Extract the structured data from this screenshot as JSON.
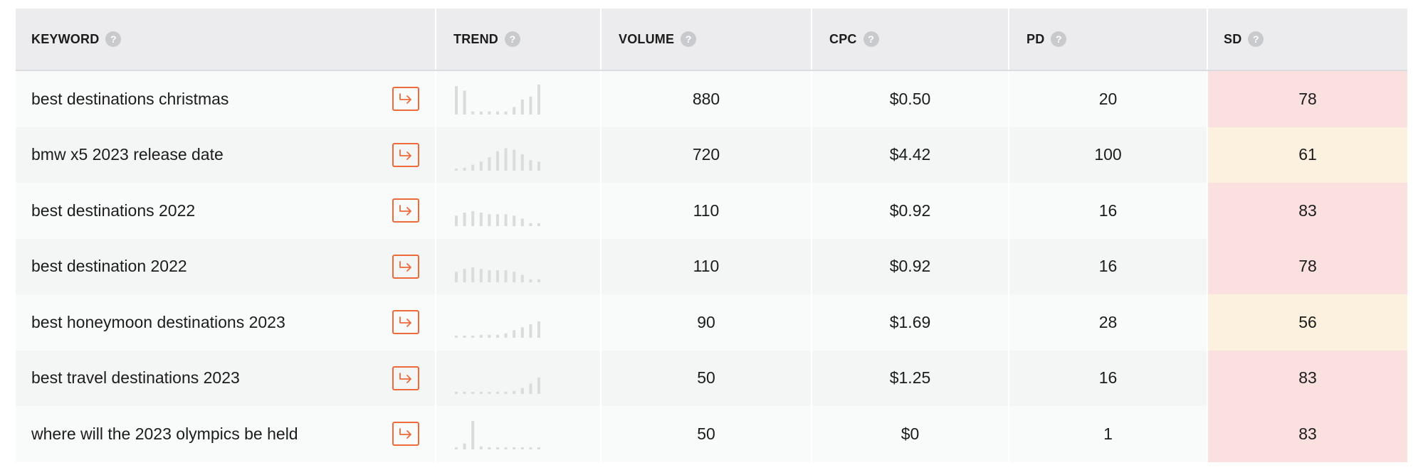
{
  "table": {
    "headers": [
      {
        "key": "keyword",
        "label": "KEYWORD"
      },
      {
        "key": "trend",
        "label": "TREND"
      },
      {
        "key": "volume",
        "label": "VOLUME"
      },
      {
        "key": "cpc",
        "label": "CPC"
      },
      {
        "key": "pd",
        "label": "PD"
      },
      {
        "key": "sd",
        "label": "SD"
      }
    ],
    "help_glyph": "?",
    "sd_colors": {
      "high": "#fbe0e0",
      "medium": "#fbf1de"
    },
    "rows": [
      {
        "keyword": "best destinations christmas",
        "trend": [
          0.95,
          0.8,
          0.1,
          0.1,
          0.1,
          0.1,
          0.1,
          0.25,
          0.5,
          0.6,
          1.0
        ],
        "volume": "880",
        "cpc": "$0.50",
        "pd": "20",
        "sd": "78",
        "sd_level": "high"
      },
      {
        "keyword": "bmw x5 2023 release date",
        "trend": [
          0.05,
          0.1,
          0.2,
          0.3,
          0.45,
          0.65,
          0.75,
          0.7,
          0.55,
          0.35,
          0.3
        ],
        "volume": "720",
        "cpc": "$4.42",
        "pd": "100",
        "sd": "61",
        "sd_level": "medium"
      },
      {
        "keyword": "best destinations 2022",
        "trend": [
          0.35,
          0.45,
          0.5,
          0.45,
          0.4,
          0.4,
          0.4,
          0.35,
          0.25,
          0.1,
          0.1
        ],
        "volume": "110",
        "cpc": "$0.92",
        "pd": "16",
        "sd": "83",
        "sd_level": "high"
      },
      {
        "keyword": "best destination 2022",
        "trend": [
          0.35,
          0.45,
          0.5,
          0.45,
          0.4,
          0.4,
          0.4,
          0.35,
          0.25,
          0.1,
          0.1
        ],
        "volume": "110",
        "cpc": "$0.92",
        "pd": "16",
        "sd": "78",
        "sd_level": "high"
      },
      {
        "keyword": "best honeymoon destinations 2023",
        "trend": [
          0.0,
          0.05,
          0.05,
          0.1,
          0.1,
          0.1,
          0.15,
          0.25,
          0.35,
          0.45,
          0.55
        ],
        "volume": "90",
        "cpc": "$1.69",
        "pd": "28",
        "sd": "56",
        "sd_level": "medium"
      },
      {
        "keyword": "best travel destinations 2023",
        "trend": [
          0.0,
          0.0,
          0.0,
          0.0,
          0.0,
          0.05,
          0.05,
          0.1,
          0.2,
          0.35,
          0.55
        ],
        "volume": "50",
        "cpc": "$1.25",
        "pd": "16",
        "sd": "83",
        "sd_level": "high"
      },
      {
        "keyword": "where will the 2023 olympics be held",
        "trend": [
          0.05,
          0.2,
          0.95,
          0.1,
          0.05,
          0.05,
          0.05,
          0.05,
          0.05,
          0.05,
          0.05
        ],
        "volume": "50",
        "cpc": "$0",
        "pd": "1",
        "sd": "83",
        "sd_level": "high"
      }
    ]
  }
}
